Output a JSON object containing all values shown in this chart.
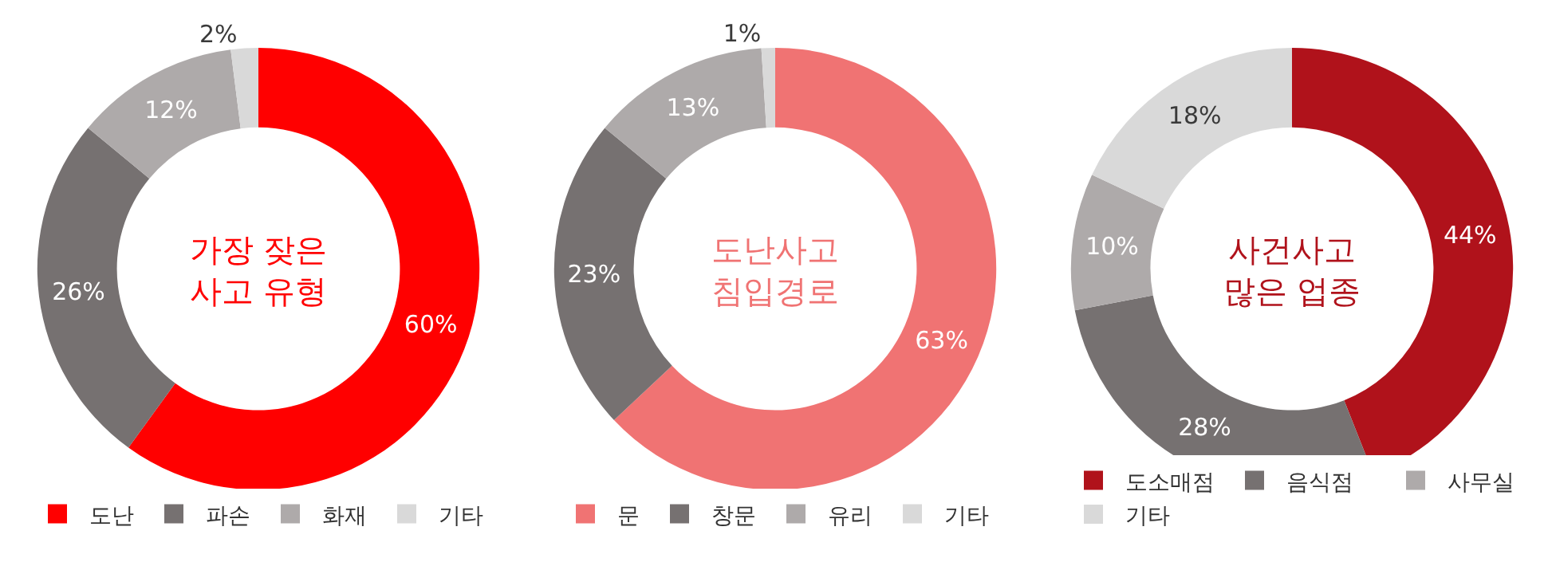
{
  "chart_data": [
    {
      "type": "donut",
      "title": "가장 잦은\n사고 유형",
      "categories": [
        "도난",
        "파손",
        "화재",
        "기타"
      ],
      "values": [
        60,
        26,
        12,
        2
      ],
      "value_labels": [
        "60%",
        "26%",
        "12%",
        "2%"
      ],
      "colors": [
        "#ff0000",
        "#767171",
        "#aeaaaa",
        "#d9d9d9"
      ],
      "legend": "bottom"
    },
    {
      "type": "donut",
      "title": "도난사고\n침입경로",
      "categories": [
        "문",
        "창문",
        "유리",
        "기타"
      ],
      "values": [
        63,
        23,
        13,
        1
      ],
      "value_labels": [
        "63%",
        "23%",
        "13%",
        "1%"
      ],
      "colors": [
        "#f07373",
        "#767171",
        "#aeaaaa",
        "#d9d9d9"
      ],
      "legend": "bottom"
    },
    {
      "type": "donut",
      "title": "사건사고\n많은 업종",
      "categories": [
        "도소매점",
        "음식점",
        "사무실",
        "기타"
      ],
      "values": [
        44,
        28,
        10,
        18
      ],
      "value_labels": [
        "44%",
        "28%",
        "10%",
        "18%"
      ],
      "colors": [
        "#b0121b",
        "#767171",
        "#aeaaaa",
        "#d9d9d9"
      ],
      "legend": "bottom"
    }
  ]
}
